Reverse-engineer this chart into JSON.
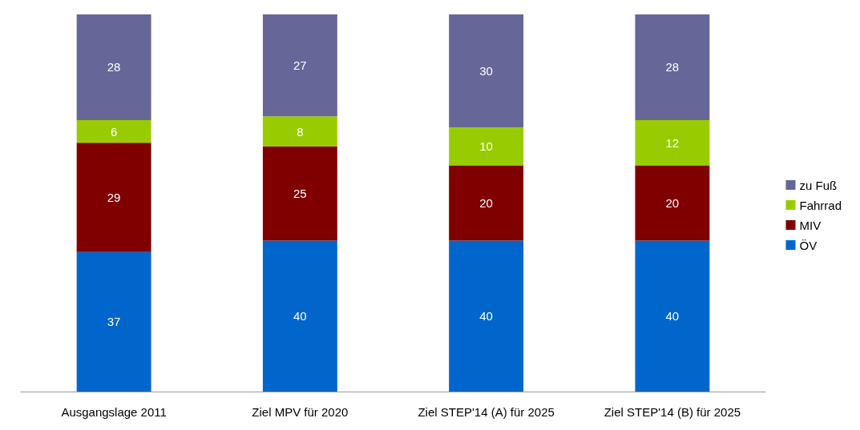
{
  "chart_data": {
    "type": "bar",
    "stacked": true,
    "data_labels": true,
    "legend": "right",
    "tick_labels": "x",
    "ylim": [
      0,
      100
    ],
    "categories": [
      "Ausgangslage 2011",
      "Ziel MPV für 2020",
      "Ziel STEP'14 (A) für 2025",
      "Ziel STEP'14 (B) für 2025"
    ],
    "series": [
      {
        "name": "ÖV",
        "color": "#0066cc",
        "values": [
          37,
          40,
          40,
          40
        ]
      },
      {
        "name": "MIV",
        "color": "#800000",
        "values": [
          29,
          25,
          20,
          20
        ]
      },
      {
        "name": "Fahrrad",
        "color": "#99cc00",
        "values": [
          6,
          8,
          10,
          12
        ]
      },
      {
        "name": "zu Fuß",
        "color": "#666699",
        "values": [
          28,
          27,
          30,
          28
        ]
      }
    ]
  }
}
